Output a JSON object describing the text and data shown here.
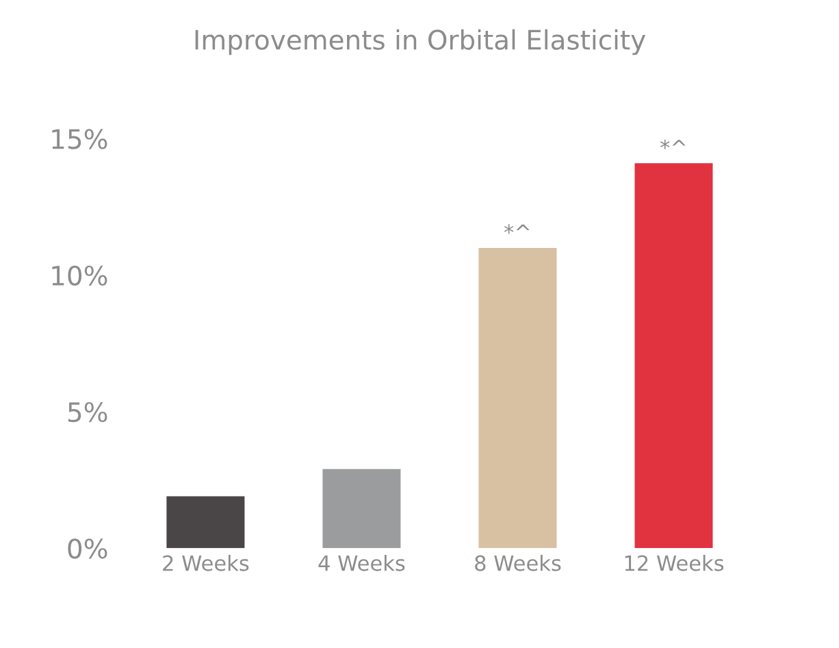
{
  "chart_data": {
    "type": "bar",
    "title": "Improvements in Orbital Elasticity",
    "categories": [
      "2 Weeks",
      "4 Weeks",
      "8 Weeks",
      "12 Weeks"
    ],
    "values": [
      1.9,
      2.9,
      11.0,
      14.1
    ],
    "colors": [
      "#4a4547",
      "#9a9c9e",
      "#d8c0a2",
      "#e0333f"
    ],
    "ylim": [
      0,
      15
    ],
    "yticks": [
      {
        "value": 0,
        "label": "0%"
      },
      {
        "value": 5,
        "label": "5%"
      },
      {
        "value": 10,
        "label": "10%"
      },
      {
        "value": 15,
        "label": "15%"
      }
    ],
    "annotations": [
      {
        "text": "*^",
        "x": "8 Weeks",
        "y": 11.0
      },
      {
        "text": "*^",
        "x": "12 Weeks",
        "y": 14.1
      }
    ],
    "grid": false,
    "legend": false
  }
}
